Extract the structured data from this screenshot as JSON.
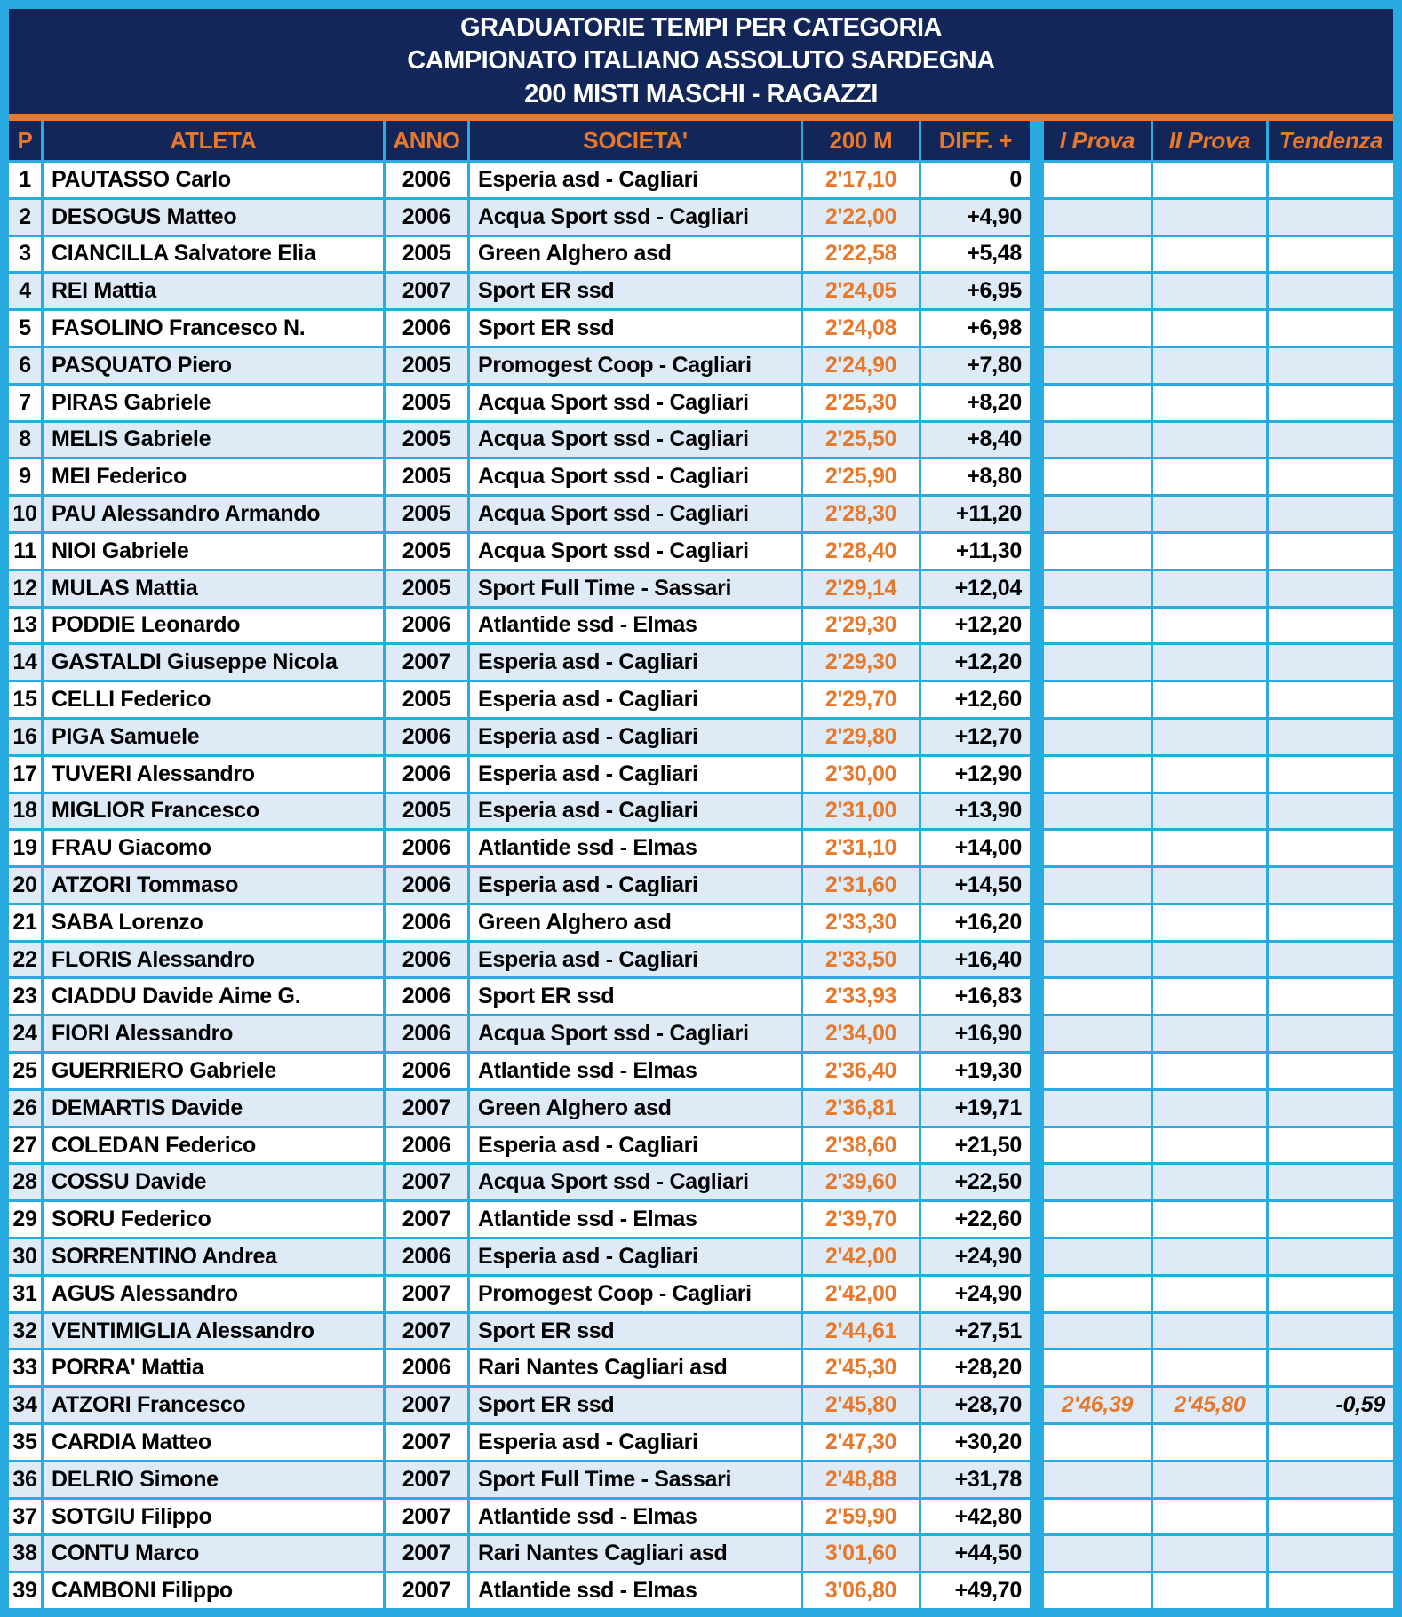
{
  "colors": {
    "cyan": "#29ABE2",
    "navy": "#12265A",
    "orange": "#E8782B",
    "rowalt": "#DEEAF6",
    "rowbase": "#FFFFFF"
  },
  "title": {
    "line1": "GRADUATORIE TEMPI PER CATEGORIA",
    "line2": "CAMPIONATO ITALIANO ASSOLUTO SARDEGNA",
    "line3": "200 MISTI MASCHI - RAGAZZI"
  },
  "columns": {
    "p": "P",
    "atleta": "ATLETA",
    "anno": "ANNO",
    "societa": "SOCIETA'",
    "m200": "200 M",
    "diff": "DIFF. +",
    "prova1": "I Prova",
    "prova2": "II Prova",
    "tendenza": "Tendenza"
  },
  "rows": [
    {
      "p": "1",
      "atleta": "PAUTASSO Carlo",
      "anno": "2006",
      "societa": "Esperia asd - Cagliari",
      "m200": "2'17,10",
      "diff": "0",
      "prova1": "",
      "prova2": "",
      "tendenza": ""
    },
    {
      "p": "2",
      "atleta": "DESOGUS Matteo",
      "anno": "2006",
      "societa": "Acqua Sport ssd - Cagliari",
      "m200": "2'22,00",
      "diff": "+4,90",
      "prova1": "",
      "prova2": "",
      "tendenza": ""
    },
    {
      "p": "3",
      "atleta": "CIANCILLA Salvatore Elia",
      "anno": "2005",
      "societa": "Green Alghero asd",
      "m200": "2'22,58",
      "diff": "+5,48",
      "prova1": "",
      "prova2": "",
      "tendenza": ""
    },
    {
      "p": "4",
      "atleta": "REI Mattia",
      "anno": "2007",
      "societa": "Sport ER ssd",
      "m200": "2'24,05",
      "diff": "+6,95",
      "prova1": "",
      "prova2": "",
      "tendenza": ""
    },
    {
      "p": "5",
      "atleta": "FASOLINO Francesco N.",
      "anno": "2006",
      "societa": "Sport ER ssd",
      "m200": "2'24,08",
      "diff": "+6,98",
      "prova1": "",
      "prova2": "",
      "tendenza": ""
    },
    {
      "p": "6",
      "atleta": "PASQUATO Piero",
      "anno": "2005",
      "societa": "Promogest Coop - Cagliari",
      "m200": "2'24,90",
      "diff": "+7,80",
      "prova1": "",
      "prova2": "",
      "tendenza": ""
    },
    {
      "p": "7",
      "atleta": "PIRAS Gabriele",
      "anno": "2005",
      "societa": "Acqua Sport ssd - Cagliari",
      "m200": "2'25,30",
      "diff": "+8,20",
      "prova1": "",
      "prova2": "",
      "tendenza": ""
    },
    {
      "p": "8",
      "atleta": "MELIS Gabriele",
      "anno": "2005",
      "societa": "Acqua Sport ssd - Cagliari",
      "m200": "2'25,50",
      "diff": "+8,40",
      "prova1": "",
      "prova2": "",
      "tendenza": ""
    },
    {
      "p": "9",
      "atleta": "MEI Federico",
      "anno": "2005",
      "societa": "Acqua Sport ssd - Cagliari",
      "m200": "2'25,90",
      "diff": "+8,80",
      "prova1": "",
      "prova2": "",
      "tendenza": ""
    },
    {
      "p": "10",
      "atleta": "PAU Alessandro Armando",
      "anno": "2005",
      "societa": "Acqua Sport ssd - Cagliari",
      "m200": "2'28,30",
      "diff": "+11,20",
      "prova1": "",
      "prova2": "",
      "tendenza": ""
    },
    {
      "p": "11",
      "atleta": "NIOI Gabriele",
      "anno": "2005",
      "societa": "Acqua Sport ssd - Cagliari",
      "m200": "2'28,40",
      "diff": "+11,30",
      "prova1": "",
      "prova2": "",
      "tendenza": ""
    },
    {
      "p": "12",
      "atleta": "MULAS Mattia",
      "anno": "2005",
      "societa": "Sport Full Time - Sassari",
      "m200": "2'29,14",
      "diff": "+12,04",
      "prova1": "",
      "prova2": "",
      "tendenza": ""
    },
    {
      "p": "13",
      "atleta": "PODDIE Leonardo",
      "anno": "2006",
      "societa": "Atlantide ssd - Elmas",
      "m200": "2'29,30",
      "diff": "+12,20",
      "prova1": "",
      "prova2": "",
      "tendenza": ""
    },
    {
      "p": "14",
      "atleta": "GASTALDI Giuseppe Nicola",
      "anno": "2007",
      "societa": "Esperia asd - Cagliari",
      "m200": "2'29,30",
      "diff": "+12,20",
      "prova1": "",
      "prova2": "",
      "tendenza": ""
    },
    {
      "p": "15",
      "atleta": "CELLI Federico",
      "anno": "2005",
      "societa": "Esperia asd - Cagliari",
      "m200": "2'29,70",
      "diff": "+12,60",
      "prova1": "",
      "prova2": "",
      "tendenza": ""
    },
    {
      "p": "16",
      "atleta": "PIGA Samuele",
      "anno": "2006",
      "societa": "Esperia asd - Cagliari",
      "m200": "2'29,80",
      "diff": "+12,70",
      "prova1": "",
      "prova2": "",
      "tendenza": ""
    },
    {
      "p": "17",
      "atleta": "TUVERI Alessandro",
      "anno": "2006",
      "societa": "Esperia asd - Cagliari",
      "m200": "2'30,00",
      "diff": "+12,90",
      "prova1": "",
      "prova2": "",
      "tendenza": ""
    },
    {
      "p": "18",
      "atleta": "MIGLIOR Francesco",
      "anno": "2005",
      "societa": "Esperia asd - Cagliari",
      "m200": "2'31,00",
      "diff": "+13,90",
      "prova1": "",
      "prova2": "",
      "tendenza": ""
    },
    {
      "p": "19",
      "atleta": "FRAU Giacomo",
      "anno": "2006",
      "societa": "Atlantide ssd - Elmas",
      "m200": "2'31,10",
      "diff": "+14,00",
      "prova1": "",
      "prova2": "",
      "tendenza": ""
    },
    {
      "p": "20",
      "atleta": "ATZORI Tommaso",
      "anno": "2006",
      "societa": "Esperia asd - Cagliari",
      "m200": "2'31,60",
      "diff": "+14,50",
      "prova1": "",
      "prova2": "",
      "tendenza": ""
    },
    {
      "p": "21",
      "atleta": "SABA Lorenzo",
      "anno": "2006",
      "societa": "Green Alghero asd",
      "m200": "2'33,30",
      "diff": "+16,20",
      "prova1": "",
      "prova2": "",
      "tendenza": ""
    },
    {
      "p": "22",
      "atleta": "FLORIS Alessandro",
      "anno": "2006",
      "societa": "Esperia asd - Cagliari",
      "m200": "2'33,50",
      "diff": "+16,40",
      "prova1": "",
      "prova2": "",
      "tendenza": ""
    },
    {
      "p": "23",
      "atleta": "CIADDU Davide Aime G.",
      "anno": "2006",
      "societa": "Sport ER ssd",
      "m200": "2'33,93",
      "diff": "+16,83",
      "prova1": "",
      "prova2": "",
      "tendenza": ""
    },
    {
      "p": "24",
      "atleta": "FIORI Alessandro",
      "anno": "2006",
      "societa": "Acqua Sport ssd - Cagliari",
      "m200": "2'34,00",
      "diff": "+16,90",
      "prova1": "",
      "prova2": "",
      "tendenza": ""
    },
    {
      "p": "25",
      "atleta": "GUERRIERO Gabriele",
      "anno": "2006",
      "societa": "Atlantide ssd - Elmas",
      "m200": "2'36,40",
      "diff": "+19,30",
      "prova1": "",
      "prova2": "",
      "tendenza": ""
    },
    {
      "p": "26",
      "atleta": "DEMARTIS Davide",
      "anno": "2007",
      "societa": "Green Alghero asd",
      "m200": "2'36,81",
      "diff": "+19,71",
      "prova1": "",
      "prova2": "",
      "tendenza": ""
    },
    {
      "p": "27",
      "atleta": "COLEDAN Federico",
      "anno": "2006",
      "societa": "Esperia asd - Cagliari",
      "m200": "2'38,60",
      "diff": "+21,50",
      "prova1": "",
      "prova2": "",
      "tendenza": ""
    },
    {
      "p": "28",
      "atleta": "COSSU Davide",
      "anno": "2007",
      "societa": "Acqua Sport ssd - Cagliari",
      "m200": "2'39,60",
      "diff": "+22,50",
      "prova1": "",
      "prova2": "",
      "tendenza": ""
    },
    {
      "p": "29",
      "atleta": "SORU Federico",
      "anno": "2007",
      "societa": "Atlantide ssd - Elmas",
      "m200": "2'39,70",
      "diff": "+22,60",
      "prova1": "",
      "prova2": "",
      "tendenza": ""
    },
    {
      "p": "30",
      "atleta": "SORRENTINO Andrea",
      "anno": "2006",
      "societa": "Esperia asd - Cagliari",
      "m200": "2'42,00",
      "diff": "+24,90",
      "prova1": "",
      "prova2": "",
      "tendenza": ""
    },
    {
      "p": "31",
      "atleta": "AGUS Alessandro",
      "anno": "2007",
      "societa": "Promogest Coop - Cagliari",
      "m200": "2'42,00",
      "diff": "+24,90",
      "prova1": "",
      "prova2": "",
      "tendenza": ""
    },
    {
      "p": "32",
      "atleta": "VENTIMIGLIA Alessandro",
      "anno": "2007",
      "societa": "Sport ER ssd",
      "m200": "2'44,61",
      "diff": "+27,51",
      "prova1": "",
      "prova2": "",
      "tendenza": ""
    },
    {
      "p": "33",
      "atleta": "PORRA' Mattia",
      "anno": "2006",
      "societa": "Rari Nantes Cagliari asd",
      "m200": "2'45,30",
      "diff": "+28,20",
      "prova1": "",
      "prova2": "",
      "tendenza": ""
    },
    {
      "p": "34",
      "atleta": "ATZORI Francesco",
      "anno": "2007",
      "societa": "Sport ER ssd",
      "m200": "2'45,80",
      "diff": "+28,70",
      "prova1": "2'46,39",
      "prova2": "2'45,80",
      "tendenza": "-0,59"
    },
    {
      "p": "35",
      "atleta": "CARDIA Matteo",
      "anno": "2007",
      "societa": "Esperia asd - Cagliari",
      "m200": "2'47,30",
      "diff": "+30,20",
      "prova1": "",
      "prova2": "",
      "tendenza": ""
    },
    {
      "p": "36",
      "atleta": "DELRIO Simone",
      "anno": "2007",
      "societa": "Sport Full Time - Sassari",
      "m200": "2'48,88",
      "diff": "+31,78",
      "prova1": "",
      "prova2": "",
      "tendenza": ""
    },
    {
      "p": "37",
      "atleta": "SOTGIU Filippo",
      "anno": "2007",
      "societa": "Atlantide ssd - Elmas",
      "m200": "2'59,90",
      "diff": "+42,80",
      "prova1": "",
      "prova2": "",
      "tendenza": ""
    },
    {
      "p": "38",
      "atleta": "CONTU Marco",
      "anno": "2007",
      "societa": "Rari Nantes Cagliari asd",
      "m200": "3'01,60",
      "diff": "+44,50",
      "prova1": "",
      "prova2": "",
      "tendenza": ""
    },
    {
      "p": "39",
      "atleta": "CAMBONI Filippo",
      "anno": "2007",
      "societa": "Atlantide ssd - Elmas",
      "m200": "3'06,80",
      "diff": "+49,70",
      "prova1": "",
      "prova2": "",
      "tendenza": ""
    }
  ]
}
